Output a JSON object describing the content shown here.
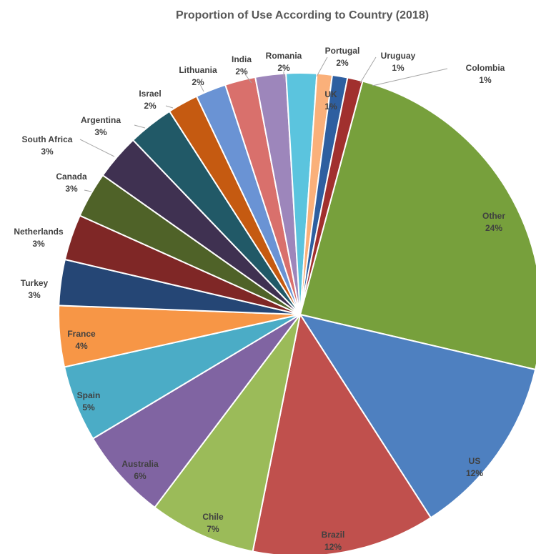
{
  "chart_data": {
    "type": "pie",
    "title": "Proportion of Use According to Country (2018)",
    "slices": [
      {
        "label": "Other",
        "value": 24,
        "percent_label": "24%",
        "color": "#77a03c"
      },
      {
        "label": "US",
        "value": 12,
        "percent_label": "12%",
        "color": "#4e80c0"
      },
      {
        "label": "Brazil",
        "value": 12,
        "percent_label": "12%",
        "color": "#c0504d"
      },
      {
        "label": "Chile",
        "value": 7,
        "percent_label": "7%",
        "color": "#9bbb59"
      },
      {
        "label": "Australia",
        "value": 6,
        "percent_label": "6%",
        "color": "#8064a2"
      },
      {
        "label": "Spain",
        "value": 5,
        "percent_label": "5%",
        "color": "#4bacc6"
      },
      {
        "label": "France",
        "value": 4,
        "percent_label": "4%",
        "color": "#f79646"
      },
      {
        "label": "Turkey",
        "value": 3,
        "percent_label": "3%",
        "color": "#254675"
      },
      {
        "label": "Netherlands",
        "value": 3,
        "percent_label": "3%",
        "color": "#7f2726"
      },
      {
        "label": "Canada",
        "value": 3,
        "percent_label": "3%",
        "color": "#4f6228"
      },
      {
        "label": "South Africa",
        "value": 3,
        "percent_label": "3%",
        "color": "#3f3151"
      },
      {
        "label": "Argentina",
        "value": 3,
        "percent_label": "3%",
        "color": "#215967"
      },
      {
        "label": "Israel",
        "value": 2,
        "percent_label": "2%",
        "color": "#c55a11"
      },
      {
        "label": "Lithuania",
        "value": 2,
        "percent_label": "2%",
        "color": "#6a93d4"
      },
      {
        "label": "India",
        "value": 2,
        "percent_label": "2%",
        "color": "#d9706c"
      },
      {
        "label": "Romania",
        "value": 2,
        "percent_label": "2%",
        "color": "#9d86bb"
      },
      {
        "label": "Portugal",
        "value": 2,
        "percent_label": "2%",
        "color": "#5bc4de"
      },
      {
        "label": "UK",
        "value": 1,
        "percent_label": "1%",
        "color": "#fab07a"
      },
      {
        "label": "Uruguay",
        "value": 1,
        "percent_label": "1%",
        "color": "#2e5fa0"
      },
      {
        "label": "Colombia",
        "value": 1,
        "percent_label": "1%",
        "color": "#a1302e"
      }
    ],
    "legend": "none"
  }
}
